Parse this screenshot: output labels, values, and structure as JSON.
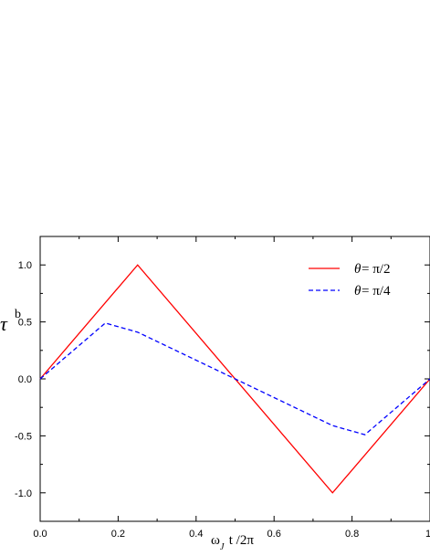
{
  "chart_data": {
    "type": "line",
    "xlabel": {
      "prefix": "ω",
      "sub": "J",
      "suffix": " t /2π"
    },
    "ylabel": {
      "main": "τ",
      "sup": "b"
    },
    "xlim": [
      0.0,
      1.0
    ],
    "ylim": [
      -1.25,
      1.25
    ],
    "x_ticks": [
      0.0,
      0.2,
      0.4,
      0.6,
      0.8,
      1.0
    ],
    "x_tick_labels": [
      "0.0",
      "0.2",
      "0.4",
      "0.6",
      "0.8",
      "1"
    ],
    "y_ticks": [
      -1.0,
      -0.5,
      0.0,
      0.5,
      1.0
    ],
    "y_tick_labels": [
      "-1.0",
      "-0.5",
      "0.0",
      "0.5",
      "1.0"
    ],
    "legend_position": "top-right",
    "series": [
      {
        "name": "θ= π/2",
        "name_theta": "θ",
        "name_value": "= π/2",
        "color": "#ff0000",
        "style": "solid",
        "x": [
          0.0,
          0.25,
          0.75,
          1.0
        ],
        "y": [
          0.0,
          1.0,
          -1.0,
          0.0
        ]
      },
      {
        "name": "θ= π/4",
        "name_theta": "θ",
        "name_value": "= π/4",
        "color": "#0000ff",
        "style": "dashed",
        "x": [
          0.0,
          0.167,
          0.25,
          0.5,
          0.75,
          0.833,
          1.0
        ],
        "y": [
          0.0,
          0.49,
          0.41,
          0.0,
          -0.41,
          -0.49,
          0.0
        ]
      }
    ]
  }
}
